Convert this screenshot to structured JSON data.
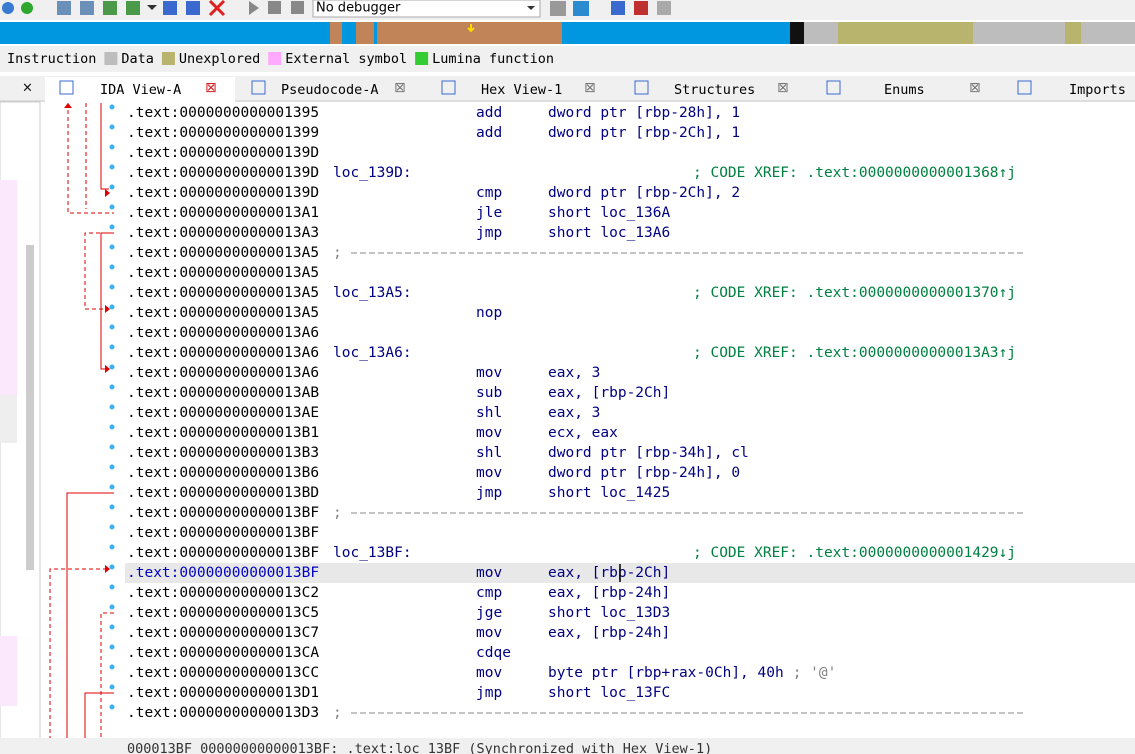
{
  "toolbar": {
    "debugger": "No debugger"
  },
  "legend": [
    "Instruction",
    "Data",
    "Unexplored",
    "External symbol",
    "Lumina function"
  ],
  "tabs": [
    "IDA View-A",
    "Pseudocode-A",
    "Hex View-1",
    "Structures",
    "Enums",
    "Imports"
  ],
  "lines": [
    {
      "addr": ".text:0000000000001395",
      "mnem": "add",
      "ops": "dword ptr [rbp-28h], 1"
    },
    {
      "addr": ".text:0000000000001399",
      "mnem": "add",
      "ops": "dword ptr [rbp-2Ch], 1"
    },
    {
      "addr": ".text:000000000000139D"
    },
    {
      "addr": ".text:000000000000139D",
      "label": "loc_139D:",
      "comment": "; CODE XREF: .text:0000000000001368↑j"
    },
    {
      "addr": ".text:000000000000139D",
      "mnem": "cmp",
      "ops": "dword ptr [rbp-2Ch], 2"
    },
    {
      "addr": ".text:00000000000013A1",
      "mnem": "jle",
      "ops": "short loc_136A"
    },
    {
      "addr": ".text:00000000000013A3",
      "mnem": "jmp",
      "ops": "short loc_13A6"
    },
    {
      "addr": ".text:00000000000013A5",
      "sep": ";"
    },
    {
      "addr": ".text:00000000000013A5"
    },
    {
      "addr": ".text:00000000000013A5",
      "label": "loc_13A5:",
      "comment": "; CODE XREF: .text:0000000000001370↑j"
    },
    {
      "addr": ".text:00000000000013A5",
      "mnem": "nop"
    },
    {
      "addr": ".text:00000000000013A6"
    },
    {
      "addr": ".text:00000000000013A6",
      "label": "loc_13A6:",
      "comment": "; CODE XREF: .text:00000000000013A3↑j"
    },
    {
      "addr": ".text:00000000000013A6",
      "mnem": "mov",
      "ops": "eax, 3"
    },
    {
      "addr": ".text:00000000000013AB",
      "mnem": "sub",
      "ops": "eax, [rbp-2Ch]"
    },
    {
      "addr": ".text:00000000000013AE",
      "mnem": "shl",
      "ops": "eax, 3"
    },
    {
      "addr": ".text:00000000000013B1",
      "mnem": "mov",
      "ops": "ecx, eax"
    },
    {
      "addr": ".text:00000000000013B3",
      "mnem": "shl",
      "ops": "dword ptr [rbp-34h], cl"
    },
    {
      "addr": ".text:00000000000013B6",
      "mnem": "mov",
      "ops": "dword ptr [rbp-24h], 0"
    },
    {
      "addr": ".text:00000000000013BD",
      "mnem": "jmp",
      "ops": "short loc_1425"
    },
    {
      "addr": ".text:00000000000013BF",
      "sep": ";"
    },
    {
      "addr": ".text:00000000000013BF"
    },
    {
      "addr": ".text:00000000000013BF",
      "label": "loc_13BF:",
      "comment": "; CODE XREF: .text:0000000000001429↓j"
    },
    {
      "addr": ".text:00000000000013BF",
      "mnem": "mov",
      "ops": "eax, [rbp-2Ch]"
    },
    {
      "addr": ".text:00000000000013C2",
      "mnem": "cmp",
      "ops": "eax, [rbp-24h]"
    },
    {
      "addr": ".text:00000000000013C5",
      "mnem": "jge",
      "ops": "short loc_13D3"
    },
    {
      "addr": ".text:00000000000013C7",
      "mnem": "mov",
      "ops": "eax, [rbp-24h]"
    },
    {
      "addr": ".text:00000000000013CA",
      "mnem": "cdqe"
    },
    {
      "addr": ".text:00000000000013CC",
      "mnem": "mov",
      "ops": "byte ptr [rbp+rax-0Ch], 40h",
      "note": "; '@'"
    },
    {
      "addr": ".text:00000000000013D1",
      "mnem": "jmp",
      "ops": "short loc_13FC"
    },
    {
      "addr": ".text:00000000000013D3",
      "sep": ";"
    }
  ],
  "status": "000013BF 00000000000013BF: .text:loc_13BF (Synchronized with Hex View-1)"
}
